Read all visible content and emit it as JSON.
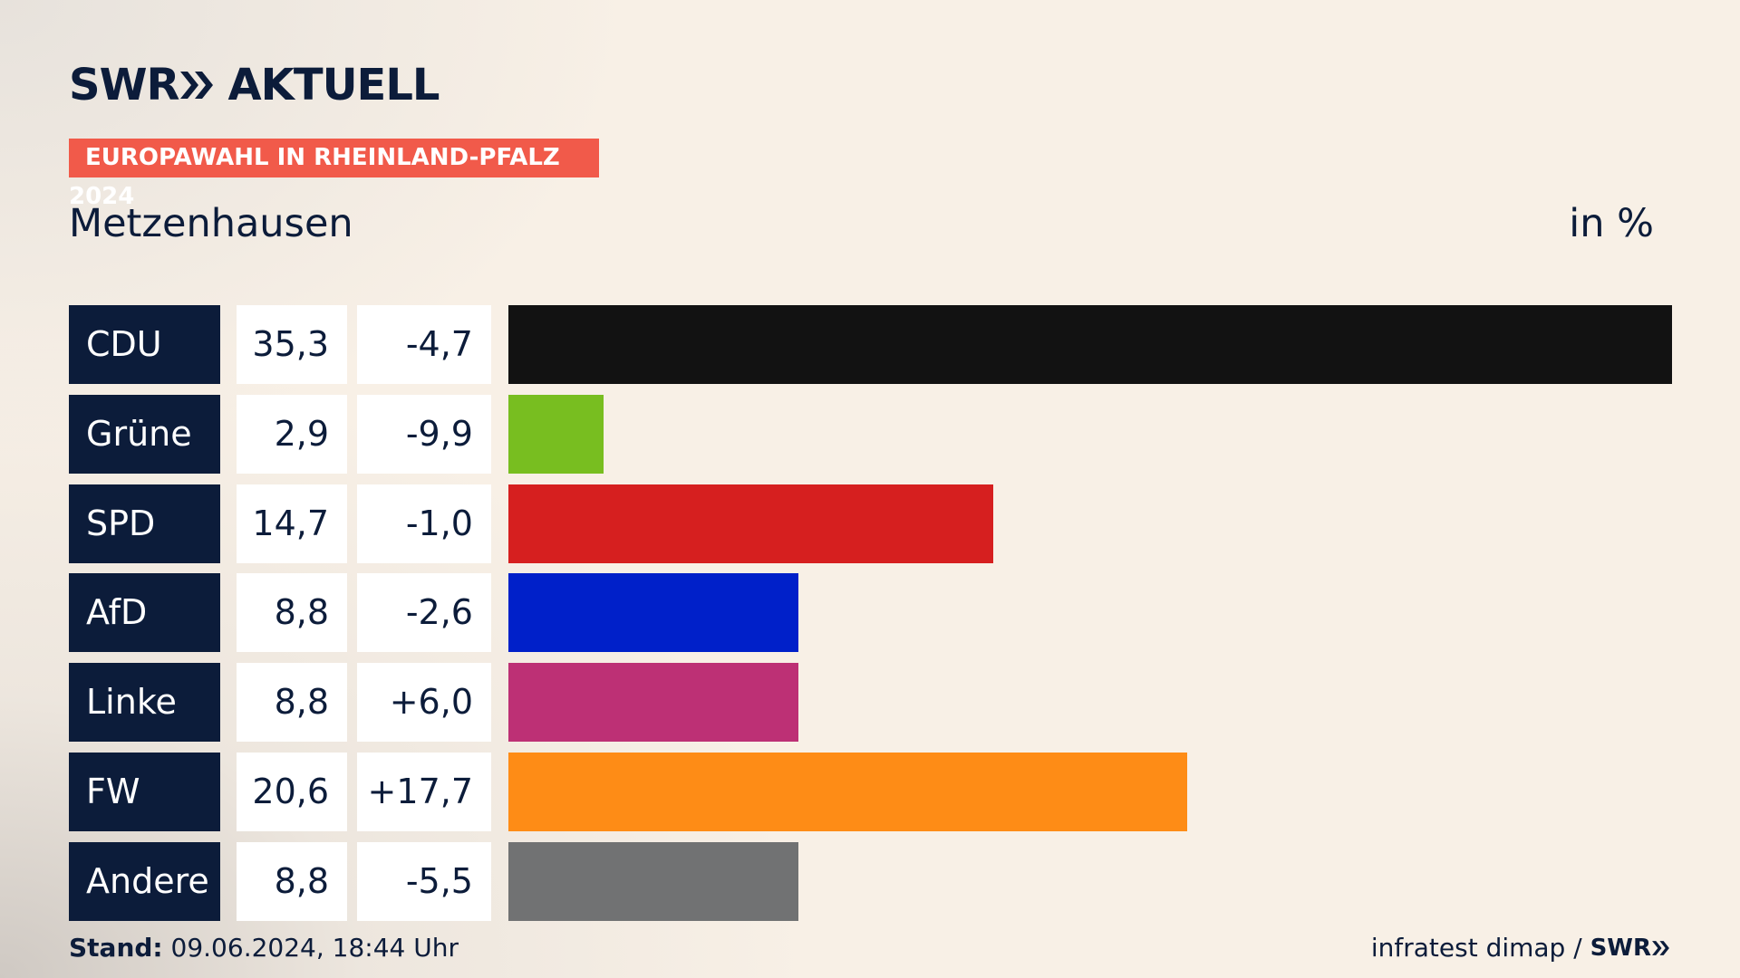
{
  "header": {
    "brand": "SWR",
    "brand_sub": "AKTUELL",
    "tag": "EUROPAWAHL IN RHEINLAND-PFALZ 2024"
  },
  "chart_data": {
    "type": "bar",
    "orientation": "horizontal",
    "title": "Metzenhausen",
    "unit_label": "in %",
    "categories": [
      "CDU",
      "Grüne",
      "SPD",
      "AfD",
      "Linke",
      "FW",
      "Andere"
    ],
    "values": [
      35.3,
      2.9,
      14.7,
      8.8,
      8.8,
      20.6,
      8.8
    ],
    "value_labels": [
      "35,3",
      "2,9",
      "14,7",
      "8,8",
      "8,8",
      "20,6",
      "8,8"
    ],
    "changes": [
      -4.7,
      -9.9,
      -1.0,
      -2.6,
      6.0,
      17.7,
      -5.5
    ],
    "change_labels": [
      "-4,7",
      "-9,9",
      "-1,0",
      "-2,6",
      "+6,0",
      "+17,7",
      "-5,5"
    ],
    "colors": [
      "#121212",
      "#78be20",
      "#d61f1f",
      "#0020c9",
      "#bd3075",
      "#fe8c16",
      "#717273"
    ],
    "xlim": [
      0,
      35.3
    ]
  },
  "footer": {
    "stand_label": "Stand:",
    "stand": "09.06.2024, 18:44 Uhr",
    "source": "infratest dimap / ",
    "source_brand": "SWR"
  }
}
